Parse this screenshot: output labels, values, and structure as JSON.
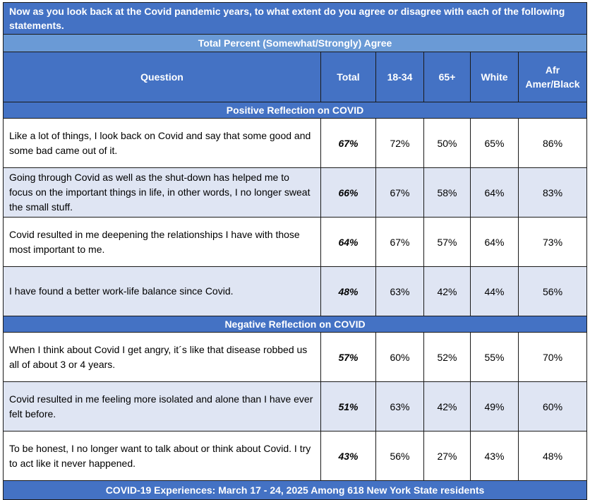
{
  "title": "Now as you look back at the Covid pandemic years, to what extent do you agree or disagree with each of the following statements.",
  "subtitle": "Total Percent (Somewhat/Strongly) Agree",
  "footer": "COVID-19 Experiences: March 17 - 24, 2025 Among 618 New York State residents",
  "colors": {
    "header_blue": "#4472c4",
    "subheader_blue": "#6a9ad6",
    "row_shade": "#dfe5f3"
  },
  "chart_data": {
    "type": "table",
    "columns": [
      "Question",
      "Total",
      "18-34",
      "65+",
      "White",
      "Afr Amer/Black"
    ],
    "sections": [
      {
        "name": "Positive Reflection on COVID",
        "rows": [
          {
            "question": "Like a lot of things, I look back on Covid and say that some good and some bad came out of it.",
            "values": [
              "67%",
              "72%",
              "50%",
              "65%",
              "86%"
            ]
          },
          {
            "question": "Going through Covid as well as the shut-down has helped me to focus on the important things in life, in other words, I no longer sweat the small stuff.",
            "values": [
              "66%",
              "67%",
              "58%",
              "64%",
              "83%"
            ]
          },
          {
            "question": "Covid resulted in me deepening the relationships I have with those most important to me.",
            "values": [
              "64%",
              "67%",
              "57%",
              "64%",
              "73%"
            ]
          },
          {
            "question": "I have found a better work-life balance since Covid.",
            "values": [
              "48%",
              "63%",
              "42%",
              "44%",
              "56%"
            ]
          }
        ]
      },
      {
        "name": "Negative Reflection on COVID",
        "rows": [
          {
            "question": "When I think about Covid I get angry, it´s like that disease robbed us all of about 3 or 4 years.",
            "values": [
              "57%",
              "60%",
              "52%",
              "55%",
              "70%"
            ]
          },
          {
            "question": "Covid resulted in me feeling more isolated and alone than I have ever felt before.",
            "values": [
              "51%",
              "63%",
              "42%",
              "49%",
              "60%"
            ]
          },
          {
            "question": "To be honest, I no longer want to talk about or think about Covid. I try to act like it never happened.",
            "values": [
              "43%",
              "56%",
              "27%",
              "43%",
              "48%"
            ]
          }
        ]
      }
    ]
  }
}
